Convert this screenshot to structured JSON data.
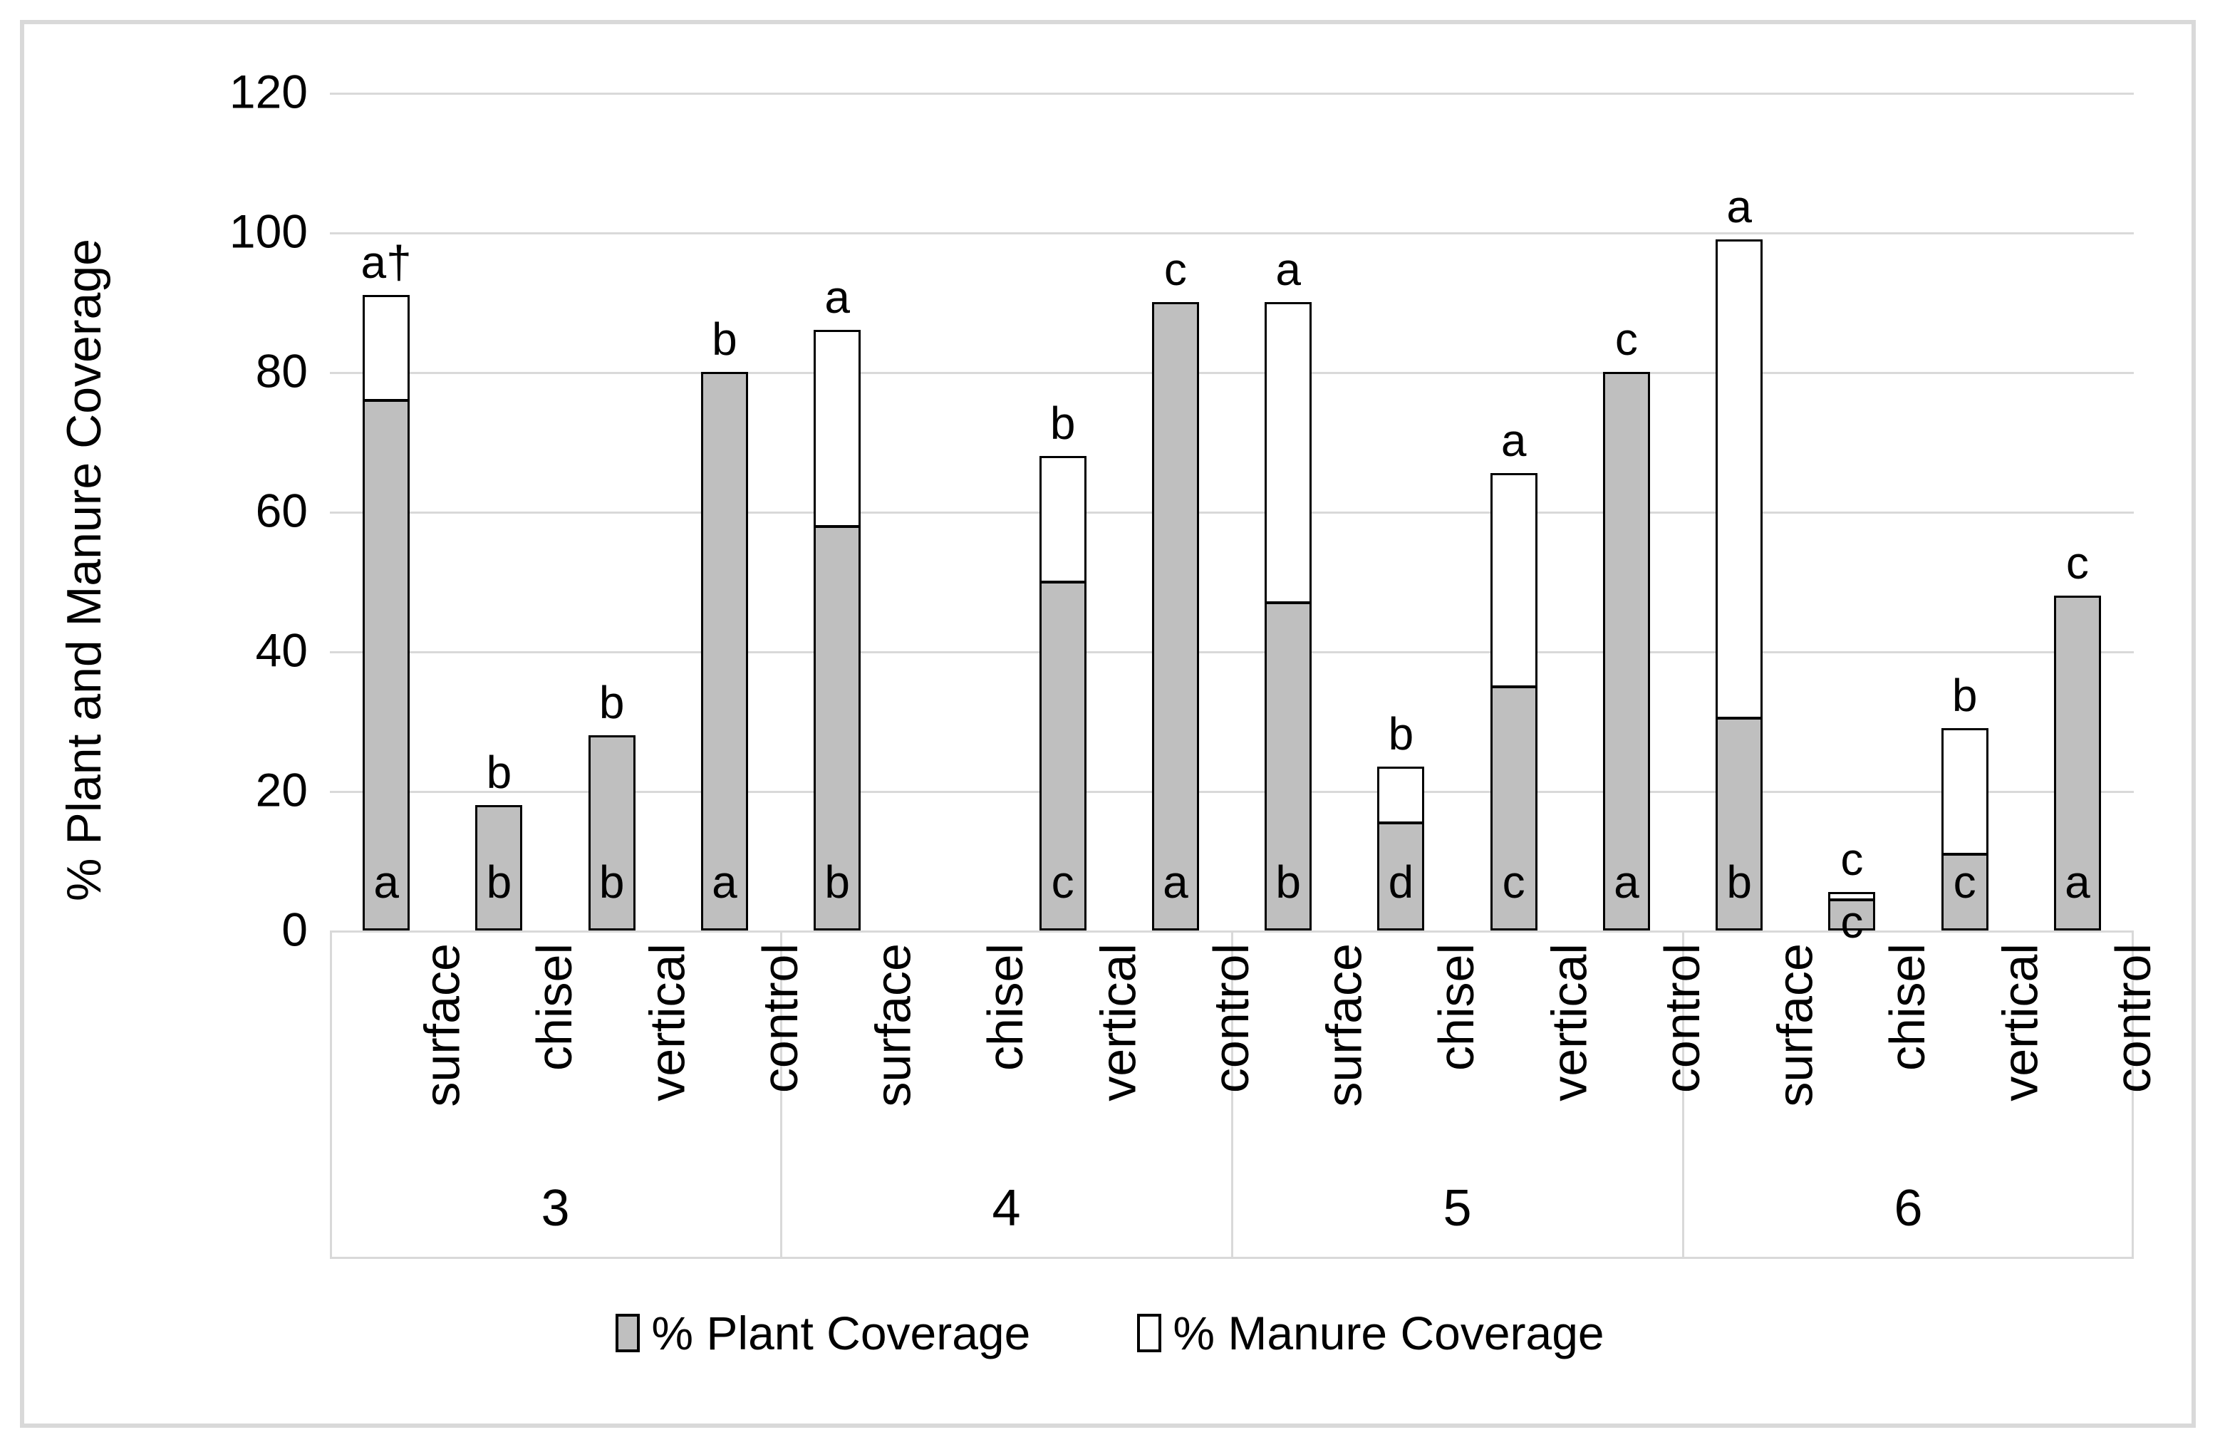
{
  "chart_data": {
    "type": "bar",
    "stacked": true,
    "ylabel": "% Plant and Manure Coverage",
    "ylim": [
      0,
      120
    ],
    "yticks": [
      0,
      20,
      40,
      60,
      80,
      100,
      120
    ],
    "grid": "horizontal",
    "legend_position": "bottom",
    "series_names": [
      "% Plant Coverage",
      "% Manure Coverage"
    ],
    "groups": [
      {
        "label": "3",
        "bars": [
          {
            "category": "surface",
            "plant": 76,
            "manure": 15,
            "letter_above": "a†",
            "letter_inside": "a"
          },
          {
            "category": "chisel",
            "plant": 18,
            "manure": 0,
            "letter_above": "b",
            "letter_inside": "b"
          },
          {
            "category": "vertical",
            "plant": 28,
            "manure": 0,
            "letter_above": "b",
            "letter_inside": "b"
          },
          {
            "category": "control",
            "plant": 80,
            "manure": 0,
            "letter_above": "b",
            "letter_inside": "a"
          }
        ]
      },
      {
        "label": "4",
        "bars": [
          {
            "category": "surface",
            "plant": 58,
            "manure": 28,
            "letter_above": "a",
            "letter_inside": "b"
          },
          {
            "category": "chisel",
            "plant": null,
            "manure": null,
            "letter_above": "",
            "letter_inside": ""
          },
          {
            "category": "vertical",
            "plant": 50,
            "manure": 18,
            "letter_above": "b",
            "letter_inside": "c"
          },
          {
            "category": "control",
            "plant": 90,
            "manure": 0,
            "letter_above": "c",
            "letter_inside": "a"
          }
        ]
      },
      {
        "label": "5",
        "bars": [
          {
            "category": "surface",
            "plant": 47,
            "manure": 43,
            "letter_above": "a",
            "letter_inside": "b"
          },
          {
            "category": "chisel",
            "plant": 15.5,
            "manure": 8,
            "letter_above": "b",
            "letter_inside": "d"
          },
          {
            "category": "vertical",
            "plant": 35,
            "manure": 30.5,
            "letter_above": "a",
            "letter_inside": "c"
          },
          {
            "category": "control",
            "plant": 80,
            "manure": 0,
            "letter_above": "c",
            "letter_inside": "a"
          }
        ]
      },
      {
        "label": "6",
        "bars": [
          {
            "category": "surface",
            "plant": 30.5,
            "manure": 68.5,
            "letter_above": "a",
            "letter_inside": "b"
          },
          {
            "category": "chisel",
            "plant": 4.5,
            "manure": 1,
            "letter_above": "c",
            "letter_inside": "c",
            "inside_below": true
          },
          {
            "category": "vertical",
            "plant": 11,
            "manure": 18,
            "letter_above": "b",
            "letter_inside": "c"
          },
          {
            "category": "control",
            "plant": 48,
            "manure": 0,
            "letter_above": "c",
            "letter_inside": "a"
          }
        ]
      }
    ],
    "legend": [
      {
        "label": "% Plant Coverage",
        "color": "#BFBFBF"
      },
      {
        "label": "% Manure Coverage",
        "color": "#FFFFFF"
      }
    ],
    "colors": {
      "bar_fill": "#BFBFBF",
      "bar_border": "#000000",
      "gridline": "#D9D9D9",
      "frame": "#D9D9D9",
      "text": "#000000"
    }
  }
}
